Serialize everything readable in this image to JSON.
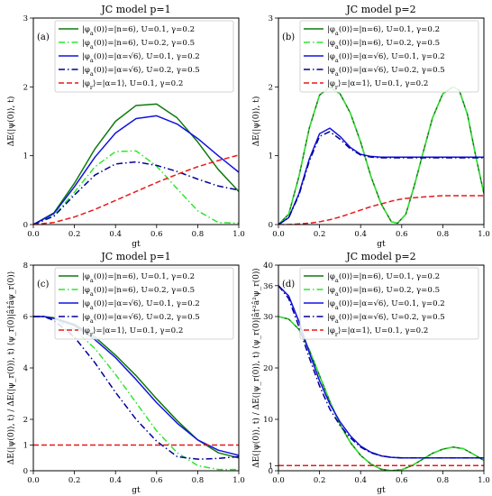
{
  "figure": {
    "legend_entries": [
      {
        "label": "|φ_a(0)⟩=|n=6⟩, U=0.1, γ=0.2",
        "color": "#0e7a0e",
        "dash": "solid"
      },
      {
        "label": "|φ_a(0)⟩=|n=6⟩, U=0.2, γ=0.5",
        "color": "#2ee62e",
        "dash": "dashdot"
      },
      {
        "label": "|φ_a(0)⟩=|α=√6⟩, U=0.1, γ=0.2",
        "color": "#1212e0",
        "dash": "solid"
      },
      {
        "label": "|φ_a(0)⟩=|α=√6⟩, U=0.2, γ=0.5",
        "color": "#000096",
        "dash": "dashdot"
      },
      {
        "label": "|φ_r⟩=|α=1⟩, U=0.1, γ=0.2",
        "color": "#e61a1a",
        "dash": "dashed"
      }
    ]
  },
  "chart_data": [
    {
      "type": "line",
      "panel_tag": "(a)",
      "title": "JC model p=1",
      "xlabel": "gt",
      "ylabel": "ΔE(|ψ(0)⟩, t)",
      "xlim": [
        0,
        1
      ],
      "ylim": [
        0,
        3
      ],
      "xticks": [
        0.0,
        0.2,
        0.4,
        0.6,
        0.8,
        1.0
      ],
      "xtick_labels": [
        "0.0",
        "0.2",
        "0.4",
        "0.6",
        "0.8",
        "1.0"
      ],
      "yticks": [
        0,
        1,
        2,
        3
      ],
      "ytick_labels": [
        "0",
        "1",
        "2",
        "3"
      ],
      "legend_position": "top",
      "x": [
        0,
        0.1,
        0.2,
        0.3,
        0.4,
        0.5,
        0.6,
        0.7,
        0.8,
        0.9,
        1.0
      ],
      "series": [
        {
          "values": [
            0,
            0.17,
            0.6,
            1.1,
            1.5,
            1.73,
            1.75,
            1.55,
            1.2,
            0.8,
            0.48
          ]
        },
        {
          "values": [
            0,
            0.13,
            0.47,
            0.84,
            1.06,
            1.07,
            0.85,
            0.52,
            0.2,
            0.03,
            0.02
          ]
        },
        {
          "values": [
            0,
            0.16,
            0.55,
            0.98,
            1.33,
            1.54,
            1.58,
            1.46,
            1.25,
            1.0,
            0.76
          ]
        },
        {
          "values": [
            0,
            0.12,
            0.43,
            0.72,
            0.88,
            0.91,
            0.86,
            0.77,
            0.66,
            0.56,
            0.5
          ]
        },
        {
          "values": [
            0,
            0.03,
            0.11,
            0.22,
            0.35,
            0.48,
            0.61,
            0.73,
            0.84,
            0.93,
            1.01
          ]
        }
      ]
    },
    {
      "type": "line",
      "panel_tag": "(b)",
      "title": "JC model p=2",
      "xlabel": "gt",
      "ylabel": "ΔE(|ψ(0)⟩, t)",
      "xlim": [
        0,
        1
      ],
      "ylim": [
        0,
        3
      ],
      "xticks": [
        0.0,
        0.2,
        0.4,
        0.6,
        0.8,
        1.0
      ],
      "xtick_labels": [
        "0.0",
        "0.2",
        "0.4",
        "0.6",
        "0.8",
        "1.0"
      ],
      "yticks": [
        0,
        1,
        2,
        3
      ],
      "ytick_labels": [
        "0",
        "1",
        "2",
        "3"
      ],
      "legend_position": "top",
      "x": [
        0,
        0.05,
        0.1,
        0.15,
        0.2,
        0.25,
        0.3,
        0.35,
        0.4,
        0.45,
        0.5,
        0.55,
        0.58,
        0.62,
        0.66,
        0.7,
        0.75,
        0.8,
        0.85,
        0.88,
        0.92,
        0.96,
        1.0
      ],
      "series": [
        {
          "values": [
            0,
            0.15,
            0.7,
            1.4,
            1.88,
            2.0,
            1.9,
            1.62,
            1.2,
            0.7,
            0.3,
            0.04,
            0.02,
            0.15,
            0.55,
            1.0,
            1.55,
            1.9,
            2.0,
            1.95,
            1.6,
            1.0,
            0.45
          ]
        },
        {
          "values": [
            0,
            0.15,
            0.7,
            1.4,
            1.88,
            2.0,
            1.9,
            1.62,
            1.2,
            0.7,
            0.3,
            0.04,
            0.02,
            0.15,
            0.55,
            1.0,
            1.55,
            1.9,
            2.0,
            1.95,
            1.6,
            1.0,
            0.45
          ]
        },
        {
          "values": [
            0,
            0.1,
            0.45,
            0.95,
            1.32,
            1.4,
            1.28,
            1.12,
            1.02,
            0.99,
            0.98,
            0.98,
            0.98,
            0.98,
            0.98,
            0.98,
            0.98,
            0.98,
            0.98,
            0.98,
            0.98,
            0.98,
            0.98
          ]
        },
        {
          "values": [
            0,
            0.1,
            0.43,
            0.92,
            1.28,
            1.35,
            1.24,
            1.1,
            1.01,
            0.98,
            0.97,
            0.97,
            0.97,
            0.97,
            0.97,
            0.97,
            0.97,
            0.97,
            0.97,
            0.97,
            0.97,
            0.97,
            0.97
          ]
        },
        {
          "values": [
            0,
            0.0,
            0.01,
            0.02,
            0.04,
            0.07,
            0.11,
            0.16,
            0.21,
            0.26,
            0.3,
            0.34,
            0.36,
            0.38,
            0.39,
            0.4,
            0.41,
            0.42,
            0.42,
            0.42,
            0.42,
            0.42,
            0.42
          ]
        }
      ]
    },
    {
      "type": "line",
      "panel_tag": "(c)",
      "title": "JC model p=1",
      "xlabel": "gt",
      "ylabel": "ΔE(|ψ(0)⟩, t) / ΔE(|ψ_r(0)⟩, t)   ⟨ψ_r(0)|â†âψ_r(0)⟩",
      "xlim": [
        0,
        1
      ],
      "ylim": [
        0,
        8
      ],
      "xticks": [
        0.0,
        0.2,
        0.4,
        0.6,
        0.8,
        1.0
      ],
      "xtick_labels": [
        "0.0",
        "0.2",
        "0.4",
        "0.6",
        "0.8",
        "1.0"
      ],
      "yticks": [
        0,
        1,
        2,
        4,
        6,
        8
      ],
      "ytick_labels": [
        "0",
        "1",
        "2",
        "4",
        "6",
        "8"
      ],
      "legend_position": "top",
      "x": [
        0,
        0.05,
        0.1,
        0.2,
        0.3,
        0.4,
        0.5,
        0.6,
        0.7,
        0.8,
        0.9,
        1.0
      ],
      "series": [
        {
          "values": [
            6,
            6.0,
            5.95,
            5.7,
            5.2,
            4.5,
            3.7,
            2.8,
            1.95,
            1.2,
            0.7,
            0.5
          ]
        },
        {
          "values": [
            6,
            6.0,
            5.9,
            5.5,
            4.75,
            3.75,
            2.65,
            1.55,
            0.7,
            0.2,
            0.05,
            0.05
          ]
        },
        {
          "values": [
            6,
            6.0,
            5.93,
            5.65,
            5.1,
            4.4,
            3.55,
            2.65,
            1.85,
            1.2,
            0.8,
            0.6
          ]
        },
        {
          "values": [
            6,
            6.0,
            5.85,
            5.2,
            4.2,
            3.05,
            2.0,
            1.15,
            0.55,
            0.45,
            0.48,
            0.55
          ]
        },
        {
          "values": [
            1,
            1,
            1,
            1,
            1,
            1,
            1,
            1,
            1,
            1,
            1,
            1
          ]
        }
      ]
    },
    {
      "type": "line",
      "panel_tag": "(d)",
      "title": "JC model p=2",
      "xlabel": "gt",
      "ylabel": "ΔE(|ψ(0)⟩, t) / ΔE(|ψ_r(0)⟩, t)   ⟨ψ_r(0)|â†²â²ψ_r(0)⟩",
      "xlim": [
        0,
        1
      ],
      "ylim": [
        0,
        40
      ],
      "xticks": [
        0.0,
        0.2,
        0.4,
        0.6,
        0.8,
        1.0
      ],
      "xtick_labels": [
        "0.0",
        "0.2",
        "0.4",
        "0.6",
        "0.8",
        "1.0"
      ],
      "yticks": [
        0,
        1,
        10,
        20,
        30,
        36,
        40
      ],
      "ytick_labels": [
        "0",
        "1",
        "10",
        "20",
        "30",
        "36",
        "40"
      ],
      "legend_position": "top",
      "x": [
        0,
        0.05,
        0.1,
        0.15,
        0.2,
        0.25,
        0.3,
        0.35,
        0.4,
        0.45,
        0.5,
        0.55,
        0.6,
        0.65,
        0.7,
        0.75,
        0.8,
        0.85,
        0.9,
        0.95,
        1.0
      ],
      "series": [
        {
          "values": [
            30,
            29.5,
            27.5,
            23.5,
            18.5,
            13.5,
            9.0,
            5.5,
            3.0,
            1.3,
            0.3,
            0.0,
            0.2,
            1.0,
            2.2,
            3.4,
            4.2,
            4.6,
            4.3,
            3.2,
            2.0
          ]
        },
        {
          "values": [
            30,
            29.5,
            27.5,
            23.5,
            18.5,
            13.5,
            9.0,
            5.5,
            3.0,
            1.3,
            0.3,
            0.0,
            0.2,
            1.0,
            2.2,
            3.4,
            4.2,
            4.6,
            4.3,
            3.2,
            2.0
          ]
        },
        {
          "values": [
            36,
            34.0,
            29.0,
            23.0,
            17.5,
            13.0,
            9.5,
            6.8,
            4.8,
            3.6,
            2.9,
            2.6,
            2.5,
            2.5,
            2.5,
            2.5,
            2.5,
            2.5,
            2.5,
            2.5,
            2.5
          ]
        },
        {
          "values": [
            36,
            33.5,
            28.0,
            22.0,
            16.5,
            12.0,
            8.8,
            6.4,
            4.6,
            3.5,
            2.9,
            2.6,
            2.5,
            2.5,
            2.5,
            2.5,
            2.5,
            2.5,
            2.5,
            2.5,
            2.5
          ]
        },
        {
          "values": [
            1,
            1,
            1,
            1,
            1,
            1,
            1,
            1,
            1,
            1,
            1,
            1,
            1,
            1,
            1,
            1,
            1,
            1,
            1,
            1,
            1
          ]
        }
      ]
    }
  ]
}
